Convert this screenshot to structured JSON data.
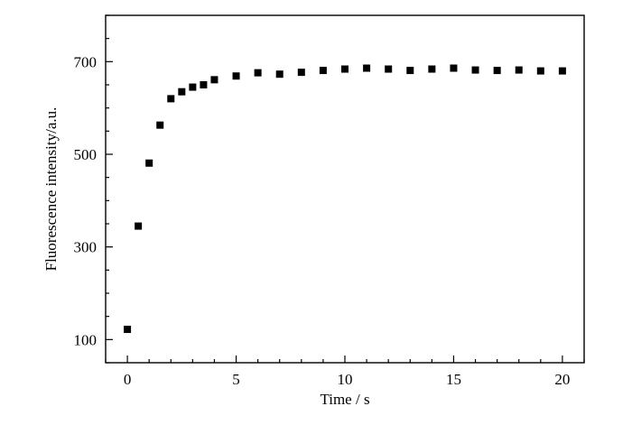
{
  "chart_data": {
    "type": "scatter",
    "title": "",
    "xlabel": "Time / s",
    "ylabel": "Fluorescence intensity/a.u.",
    "xlim": [
      -1,
      21
    ],
    "ylim": [
      50,
      800
    ],
    "x_ticks": [
      0,
      5,
      10,
      15,
      20
    ],
    "y_ticks": [
      100,
      300,
      500,
      700
    ],
    "x_minor_step": 1,
    "y_minor_step": 50,
    "grid": false,
    "legend": "none",
    "marker": "square",
    "marker_color": "#000000",
    "series": [
      {
        "x": [
          0,
          0.5,
          1,
          1.5,
          2,
          2.5,
          3,
          3.5,
          4,
          5,
          6,
          7,
          8,
          9,
          10,
          11,
          12,
          13,
          14,
          15,
          16,
          17,
          18,
          19,
          20
        ],
        "y": [
          122,
          345,
          481,
          563,
          620,
          635,
          645,
          650,
          661,
          669,
          676,
          673,
          677,
          681,
          684,
          686,
          684,
          681,
          684,
          686,
          682,
          681,
          682,
          680,
          680
        ]
      }
    ]
  }
}
